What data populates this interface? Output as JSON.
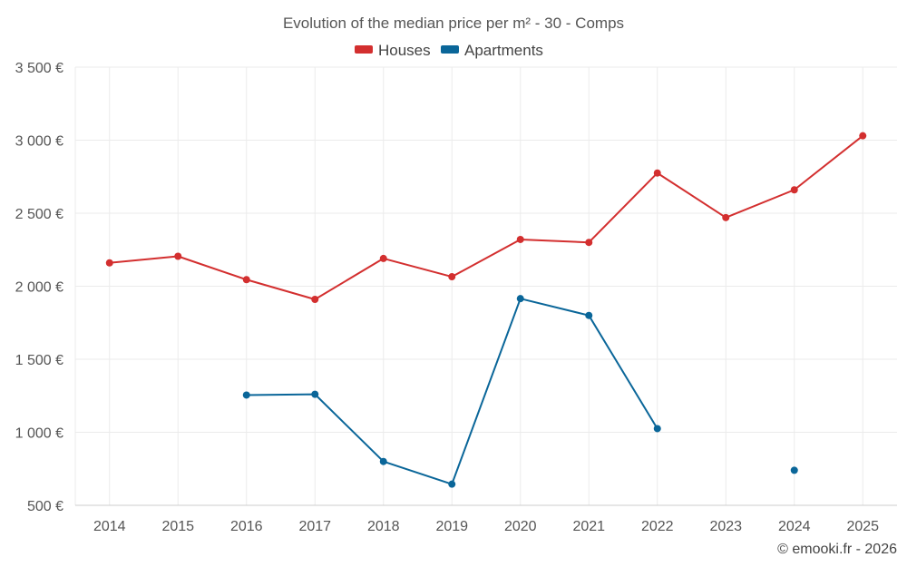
{
  "chart_data": {
    "type": "line",
    "title": "Evolution of the median price per m² - 30 - Comps",
    "categories": [
      "2014",
      "2015",
      "2016",
      "2017",
      "2018",
      "2019",
      "2020",
      "2021",
      "2022",
      "2023",
      "2024",
      "2025"
    ],
    "series": [
      {
        "name": "Houses",
        "color": "#d32f2f",
        "values": [
          2160,
          2205,
          2045,
          1910,
          2190,
          2065,
          2320,
          2300,
          2775,
          2470,
          2660,
          3030
        ]
      },
      {
        "name": "Apartments",
        "color": "#0a6699",
        "values": [
          null,
          null,
          1255,
          1260,
          800,
          645,
          1915,
          1800,
          1025,
          null,
          740,
          null
        ]
      }
    ],
    "y_ticks": [
      500,
      1000,
      1500,
      2000,
      2500,
      3000,
      3500
    ],
    "y_tick_labels": [
      "500 €",
      "1 000 €",
      "1 500 €",
      "2 000 €",
      "2 500 €",
      "3 000 €",
      "3 500 €"
    ],
    "ylim": [
      500,
      3500
    ],
    "xlabel": "",
    "ylabel": "",
    "legend_position": "top-center",
    "grid": true
  },
  "credit": "© emooki.fr - 2026"
}
